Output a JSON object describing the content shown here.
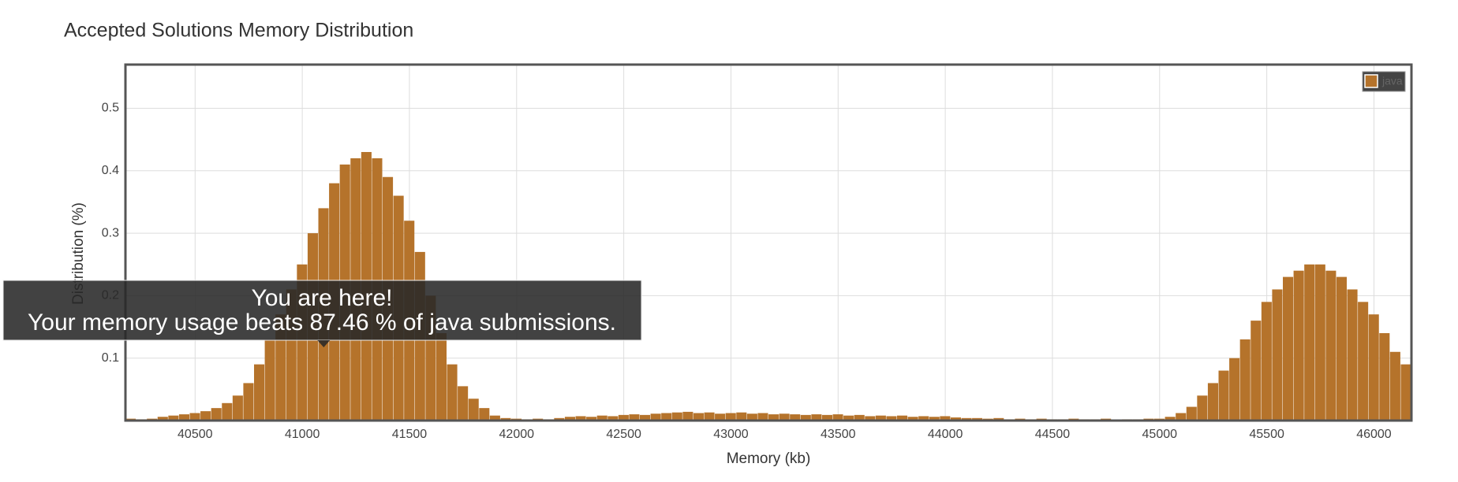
{
  "chart_data": {
    "type": "histogram",
    "title": "Accepted Solutions Memory Distribution",
    "x_label": "Memory (kb)",
    "y_label": "Distribution (%)",
    "color": "#b5732b",
    "legend": {
      "name": "java",
      "position": "upper right"
    },
    "annotation": {
      "title": "You are here!",
      "text": "Your memory usage beats 87.46 % of java submissions.",
      "x": 41100
    },
    "grid": true,
    "xlim": [
      40175,
      46175
    ],
    "ylim": [
      0,
      0.57
    ],
    "xticks": [
      40500,
      41000,
      41500,
      42000,
      42500,
      43000,
      43500,
      44000,
      44500,
      45000,
      45500,
      46000
    ],
    "yticks": [
      0.1,
      0.2,
      0.3,
      0.4,
      0.5
    ],
    "bins": [
      40175,
      40225,
      40275,
      40325,
      40375,
      40425,
      40475,
      40525,
      40575,
      40625,
      40675,
      40725,
      40775,
      40825,
      40875,
      40925,
      40975,
      41025,
      41075,
      41125,
      41175,
      41225,
      41275,
      41325,
      41375,
      41425,
      41475,
      41525,
      41575,
      41625,
      41675,
      41725,
      41775,
      41825,
      41875,
      41925,
      41975,
      42025,
      42075,
      42125,
      42175,
      42225,
      42275,
      42325,
      42375,
      42425,
      42475,
      42525,
      42575,
      42625,
      42675,
      42725,
      42775,
      42825,
      42875,
      42925,
      42975,
      43025,
      43075,
      43125,
      43175,
      43225,
      43275,
      43325,
      43375,
      43425,
      43475,
      43525,
      43575,
      43625,
      43675,
      43725,
      43775,
      43825,
      43875,
      43925,
      43975,
      44025,
      44075,
      44125,
      44175,
      44225,
      44275,
      44325,
      44375,
      44425,
      44475,
      44525,
      44575,
      44625,
      44675,
      44725,
      44775,
      44825,
      44875,
      44925,
      44975,
      45025,
      45075,
      45125,
      45175,
      45225,
      45275,
      45325,
      45375,
      45425,
      45475,
      45525,
      45575,
      45625,
      45675,
      45725,
      45775,
      45825,
      45875,
      45925,
      45975,
      46025,
      46075,
      46125,
      46175
    ],
    "values": [
      0.003,
      0.002,
      0.003,
      0.006,
      0.008,
      0.01,
      0.012,
      0.015,
      0.02,
      0.028,
      0.04,
      0.06,
      0.09,
      0.13,
      0.17,
      0.21,
      0.25,
      0.3,
      0.34,
      0.38,
      0.41,
      0.42,
      0.43,
      0.42,
      0.39,
      0.36,
      0.32,
      0.27,
      0.2,
      0.14,
      0.09,
      0.055,
      0.035,
      0.02,
      0.008,
      0.004,
      0.003,
      0.002,
      0.003,
      0.002,
      0.004,
      0.006,
      0.007,
      0.006,
      0.008,
      0.007,
      0.009,
      0.01,
      0.009,
      0.011,
      0.012,
      0.013,
      0.014,
      0.012,
      0.013,
      0.011,
      0.012,
      0.013,
      0.011,
      0.012,
      0.01,
      0.011,
      0.01,
      0.009,
      0.01,
      0.009,
      0.01,
      0.008,
      0.009,
      0.007,
      0.008,
      0.007,
      0.008,
      0.006,
      0.007,
      0.006,
      0.007,
      0.005,
      0.004,
      0.004,
      0.003,
      0.004,
      0.002,
      0.003,
      0.002,
      0.003,
      0.002,
      0.002,
      0.003,
      0.002,
      0.002,
      0.003,
      0.001,
      0.002,
      0.002,
      0.003,
      0.003,
      0.006,
      0.012,
      0.022,
      0.04,
      0.06,
      0.08,
      0.1,
      0.13,
      0.16,
      0.19,
      0.21,
      0.23,
      0.24,
      0.25,
      0.25,
      0.24,
      0.23,
      0.21,
      0.19,
      0.17,
      0.14,
      0.11,
      0.09
    ]
  }
}
